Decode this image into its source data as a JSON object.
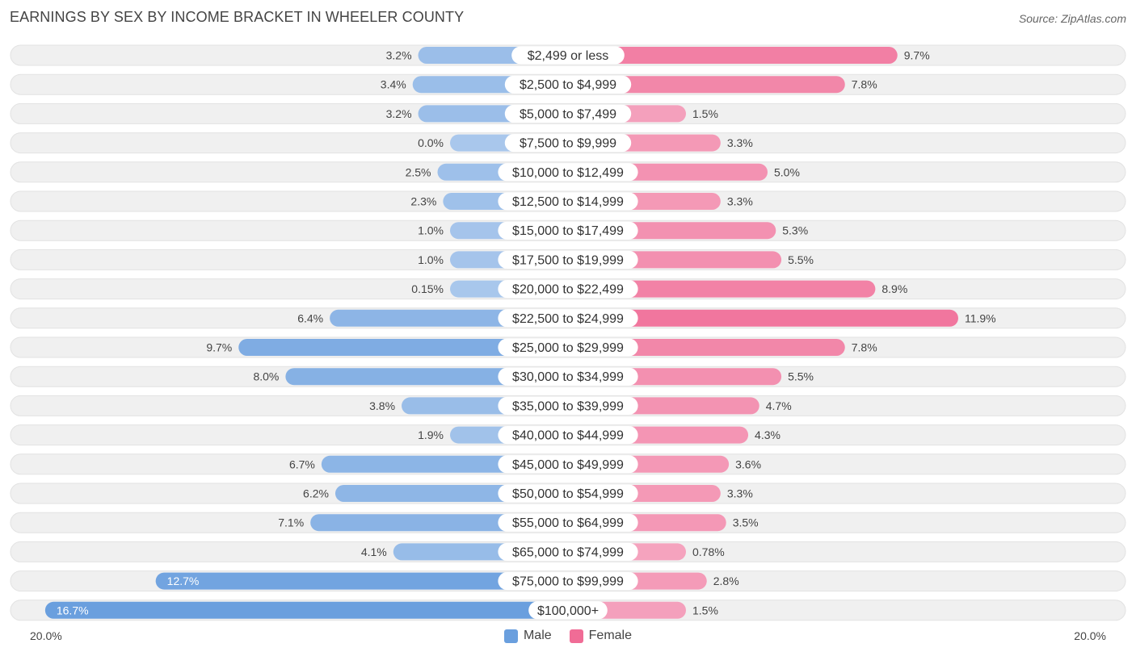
{
  "title": "EARNINGS BY SEX BY INCOME BRACKET IN WHEELER COUNTY",
  "source": "Source: ZipAtlas.com",
  "colors": {
    "male": "#6a9fde",
    "male_light": "#a9c7ec",
    "female": "#f06c96",
    "female_light": "#f5a6c0",
    "row_bg": "#f0f0f0"
  },
  "legend": {
    "male": "Male",
    "female": "Female"
  },
  "axis": {
    "left_label": "20.0%",
    "right_label": "20.0%"
  },
  "chart_data": {
    "type": "bar",
    "orientation": "horizontal-diverging",
    "title": "EARNINGS BY SEX BY INCOME BRACKET IN WHEELER COUNTY",
    "categories": [
      "$2,499 or less",
      "$2,500 to $4,999",
      "$5,000 to $7,499",
      "$7,500 to $9,999",
      "$10,000 to $12,499",
      "$12,500 to $14,999",
      "$15,000 to $17,499",
      "$17,500 to $19,999",
      "$20,000 to $22,499",
      "$22,500 to $24,999",
      "$25,000 to $29,999",
      "$30,000 to $34,999",
      "$35,000 to $39,999",
      "$40,000 to $44,999",
      "$45,000 to $49,999",
      "$50,000 to $54,999",
      "$55,000 to $64,999",
      "$65,000 to $74,999",
      "$75,000 to $99,999",
      "$100,000+"
    ],
    "series": [
      {
        "name": "Male",
        "values": [
          3.2,
          3.4,
          3.2,
          0.0,
          2.5,
          2.3,
          1.0,
          1.0,
          0.15,
          6.4,
          9.7,
          8.0,
          3.8,
          1.9,
          6.7,
          6.2,
          7.1,
          4.1,
          12.7,
          16.7
        ],
        "labels": [
          "3.2%",
          "3.4%",
          "3.2%",
          "0.0%",
          "2.5%",
          "2.3%",
          "1.0%",
          "1.0%",
          "0.15%",
          "6.4%",
          "9.7%",
          "8.0%",
          "3.8%",
          "1.9%",
          "6.7%",
          "6.2%",
          "7.1%",
          "4.1%",
          "12.7%",
          "16.7%"
        ]
      },
      {
        "name": "Female",
        "values": [
          9.7,
          7.8,
          1.5,
          3.3,
          5.0,
          3.3,
          5.3,
          5.5,
          8.9,
          11.9,
          7.8,
          5.5,
          4.7,
          4.3,
          3.6,
          3.3,
          3.5,
          0.78,
          2.8,
          1.5
        ],
        "labels": [
          "9.7%",
          "7.8%",
          "1.5%",
          "3.3%",
          "5.0%",
          "3.3%",
          "5.3%",
          "5.5%",
          "8.9%",
          "11.9%",
          "7.8%",
          "5.5%",
          "4.7%",
          "4.3%",
          "3.6%",
          "3.3%",
          "3.5%",
          "0.78%",
          "2.8%",
          "1.5%"
        ]
      }
    ],
    "xlim": [
      -20,
      20
    ],
    "unit": "%",
    "legend_position": "bottom-center"
  }
}
